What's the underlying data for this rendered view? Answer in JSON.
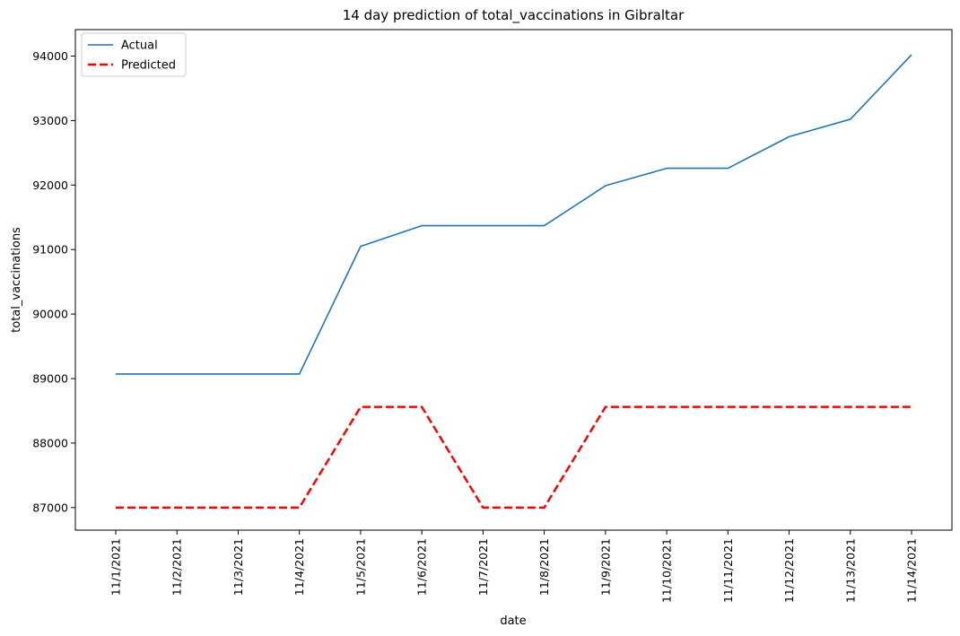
{
  "chart_data": {
    "type": "line",
    "title": "14 day prediction of total_vaccinations in Gibraltar",
    "xlabel": "date",
    "ylabel": "total_vaccinations",
    "categories": [
      "11/1/2021",
      "11/2/2021",
      "11/3/2021",
      "11/4/2021",
      "11/5/2021",
      "11/6/2021",
      "11/7/2021",
      "11/8/2021",
      "11/9/2021",
      "11/10/2021",
      "11/11/2021",
      "11/12/2021",
      "11/13/2021",
      "11/14/2021"
    ],
    "yticks": [
      87000,
      88000,
      89000,
      90000,
      91000,
      92000,
      93000,
      94000
    ],
    "ylim": [
      86650,
      94410
    ],
    "grid": false,
    "legend_position": "top-left",
    "series": [
      {
        "name": "Actual",
        "color": "#1f77b4",
        "style": "solid",
        "values": [
          89070,
          89070,
          89070,
          89070,
          91050,
          91370,
          91370,
          91370,
          91990,
          92260,
          92260,
          92750,
          93020,
          94020
        ]
      },
      {
        "name": "Predicted",
        "color": "#ff0000",
        "style": "dashed",
        "values": [
          87000,
          87000,
          87000,
          87000,
          88560,
          88560,
          87000,
          87000,
          88560,
          88560,
          88560,
          88560,
          88560,
          88560
        ]
      }
    ]
  }
}
